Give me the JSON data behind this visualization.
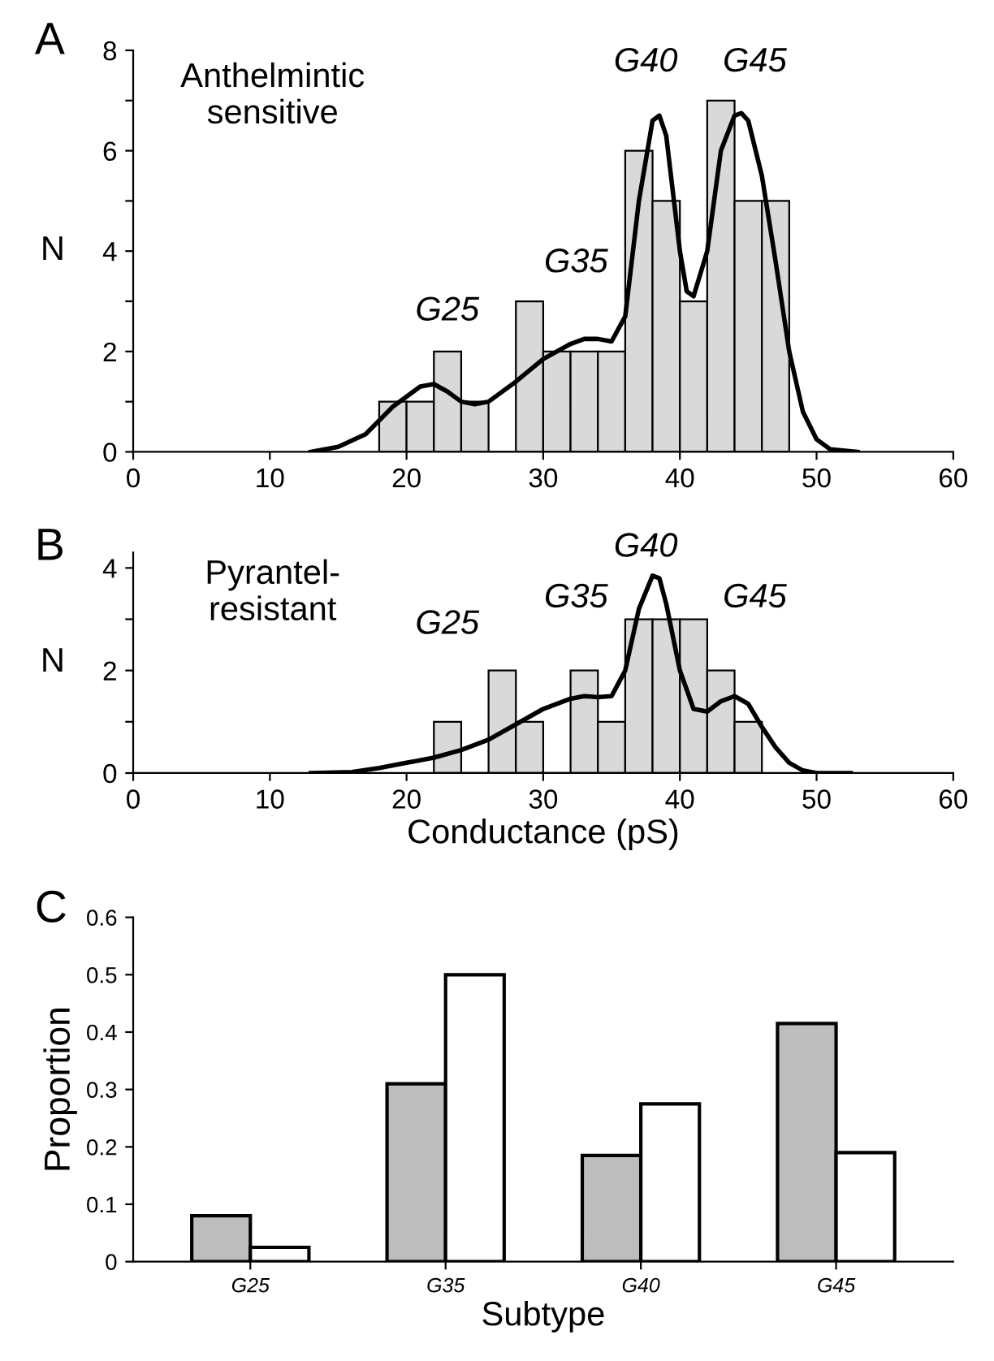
{
  "chart_data": [
    {
      "type": "histogram",
      "title": "Anthelmintic\nsensitive",
      "ylabel": "N",
      "bins": [
        18,
        20,
        22,
        24,
        26,
        28,
        30,
        32,
        34,
        36,
        38,
        40,
        42,
        44,
        46,
        48
      ],
      "values": [
        1,
        1,
        2,
        1,
        0,
        3,
        2,
        2,
        2,
        6,
        5,
        3,
        7,
        5,
        5
      ],
      "color": "#d9d9d9",
      "series": [
        {
          "type": "line",
          "color": "#000000",
          "x": [
            13,
            15,
            17,
            19,
            21,
            22,
            23,
            24,
            25,
            26,
            28,
            30,
            32,
            33,
            34,
            35,
            36,
            37,
            38,
            38.5,
            39,
            40,
            40.5,
            41,
            42,
            43,
            44,
            44.5,
            45,
            46,
            47,
            48,
            49,
            50,
            51,
            53
          ],
          "values": [
            0,
            0.1,
            0.35,
            0.9,
            1.3,
            1.35,
            1.2,
            1.0,
            0.95,
            1.0,
            1.4,
            1.85,
            2.15,
            2.25,
            2.25,
            2.2,
            2.7,
            5.0,
            6.6,
            6.7,
            6.3,
            4.0,
            3.2,
            3.1,
            4.0,
            6.0,
            6.7,
            6.75,
            6.6,
            5.5,
            3.8,
            2.0,
            0.8,
            0.25,
            0.05,
            0
          ]
        }
      ],
      "xlim": [
        0,
        60
      ],
      "xticks": [
        0,
        10,
        20,
        30,
        40,
        50,
        60
      ],
      "ylim": [
        0,
        8
      ],
      "yticks": [
        0,
        {
          "value": 1,
          "label": null
        },
        2,
        {
          "value": 3,
          "label": null
        },
        4,
        {
          "value": 5,
          "label": null
        },
        6,
        {
          "value": 7,
          "label": null
        },
        8
      ],
      "grid": false,
      "legend": false,
      "annotations": [
        "A",
        "G25",
        "G35",
        "G40",
        "G45"
      ]
    },
    {
      "type": "histogram",
      "title": "Pyrantel-\nresistant",
      "ylabel": "N",
      "xlabel": "Conductance (pS)",
      "bins": [
        22,
        24,
        26,
        28,
        30,
        32,
        34,
        36,
        38,
        40,
        42,
        44,
        46
      ],
      "values": [
        1,
        0,
        2,
        1,
        0,
        2,
        1,
        3,
        3,
        3,
        2,
        1
      ],
      "color": "#d9d9d9",
      "series": [
        {
          "type": "line",
          "color": "#000000",
          "x": [
            13,
            16,
            18,
            20,
            22,
            24,
            26,
            28,
            30,
            32,
            33,
            34,
            35,
            36,
            37,
            38,
            38.5,
            39,
            40,
            41,
            42,
            43,
            44,
            45,
            46,
            47,
            48,
            49,
            50,
            52.5
          ],
          "values": [
            0,
            0.02,
            0.1,
            0.2,
            0.3,
            0.45,
            0.65,
            0.95,
            1.25,
            1.45,
            1.5,
            1.48,
            1.5,
            2.0,
            3.2,
            3.85,
            3.8,
            3.3,
            2.0,
            1.25,
            1.2,
            1.4,
            1.5,
            1.35,
            0.9,
            0.5,
            0.2,
            0.05,
            0,
            0
          ]
        }
      ],
      "xlim": [
        0,
        60
      ],
      "xticks": [
        0,
        10,
        20,
        30,
        40,
        50,
        60
      ],
      "ylim": [
        0,
        4.3
      ],
      "yticks": [
        0,
        {
          "value": 1,
          "label": null
        },
        2,
        {
          "value": 3,
          "label": null
        },
        4
      ],
      "grid": false,
      "legend": false,
      "annotations": [
        "B",
        "G25",
        "G35",
        "G40",
        "G45"
      ]
    },
    {
      "type": "bar",
      "ylabel": "Proportion",
      "xlabel": "Subtype",
      "categories": [
        "G25",
        "G35",
        "G40",
        "G45"
      ],
      "series": [
        {
          "color": "#bdbdbd",
          "values": [
            0.08,
            0.31,
            0.185,
            0.415
          ]
        },
        {
          "color": "#ffffff",
          "values": [
            0.025,
            0.5,
            0.275,
            0.19
          ]
        }
      ],
      "ylim": [
        0,
        0.6
      ],
      "yticks": [
        0,
        0.1,
        0.2,
        0.3,
        0.4,
        0.5,
        0.6
      ],
      "grid": false,
      "legend": false,
      "annotations": [
        "C"
      ]
    }
  ]
}
